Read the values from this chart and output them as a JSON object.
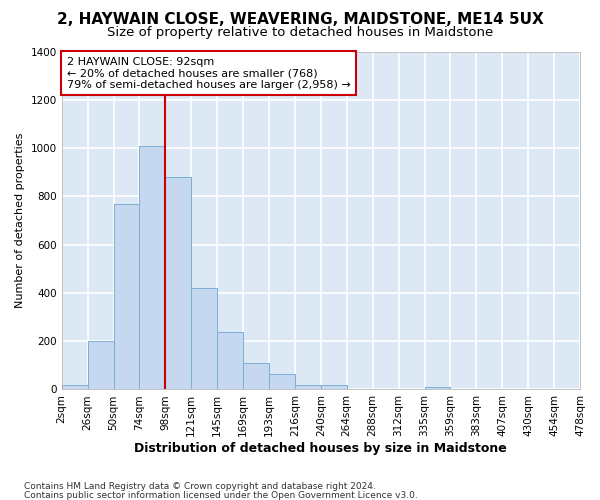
{
  "title_line1": "2, HAYWAIN CLOSE, WEAVERING, MAIDSTONE, ME14 5UX",
  "title_line2": "Size of property relative to detached houses in Maidstone",
  "xlabel": "Distribution of detached houses by size in Maidstone",
  "ylabel": "Number of detached properties",
  "bar_color": "#c5d8f0",
  "bar_edge_color": "#7bafd4",
  "bar_values": [
    20,
    200,
    770,
    1010,
    880,
    420,
    240,
    110,
    65,
    20,
    20,
    0,
    0,
    0,
    10,
    0,
    0,
    0,
    0,
    0
  ],
  "bin_edges": [
    2,
    26,
    50,
    74,
    98,
    121,
    145,
    169,
    193,
    216,
    240,
    264,
    288,
    312,
    335,
    359,
    383,
    407,
    430,
    454,
    478
  ],
  "bin_labels": [
    "2sqm",
    "26sqm",
    "50sqm",
    "74sqm",
    "98sqm",
    "121sqm",
    "145sqm",
    "169sqm",
    "193sqm",
    "216sqm",
    "240sqm",
    "264sqm",
    "288sqm",
    "312sqm",
    "335sqm",
    "359sqm",
    "383sqm",
    "407sqm",
    "430sqm",
    "454sqm",
    "478sqm"
  ],
  "vline_position": 4,
  "vline_color": "#cc0000",
  "annotation_text": "2 HAYWAIN CLOSE: 92sqm\n← 20% of detached houses are smaller (768)\n79% of semi-detached houses are larger (2,958) →",
  "annotation_box_facecolor": "#ffffff",
  "annotation_box_edgecolor": "#cc0000",
  "ylim_max": 1400,
  "yticks": [
    0,
    200,
    400,
    600,
    800,
    1000,
    1200,
    1400
  ],
  "plot_bg_color": "#dce9f5",
  "fig_bg_color": "#ffffff",
  "grid_color": "#ffffff",
  "title_fontsize": 11,
  "subtitle_fontsize": 9.5,
  "ylabel_fontsize": 8,
  "xlabel_fontsize": 9,
  "tick_fontsize": 7.5,
  "annot_fontsize": 8,
  "footer_fontsize": 6.5
}
